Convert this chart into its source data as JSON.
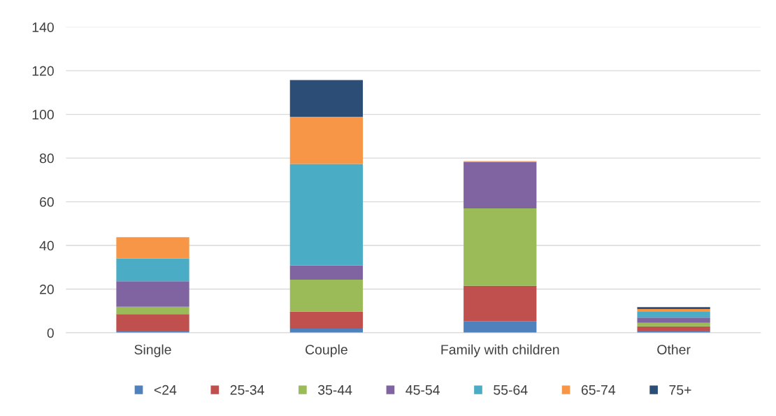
{
  "chart_data": {
    "type": "bar",
    "stacked": true,
    "categories": [
      "Single",
      "Couple",
      "Family with children",
      "Other"
    ],
    "series": [
      {
        "name": "<24",
        "color": "#4f81bd",
        "values": [
          1.0,
          1.9,
          5.4,
          1.0
        ]
      },
      {
        "name": "25-34",
        "color": "#c0504d",
        "values": [
          7.6,
          7.8,
          16.1,
          2.0
        ]
      },
      {
        "name": "35-44",
        "color": "#9bbb59",
        "values": [
          3.3,
          14.6,
          35.5,
          1.6
        ]
      },
      {
        "name": "45-54",
        "color": "#8064a2",
        "values": [
          11.7,
          6.6,
          21.3,
          2.4
        ]
      },
      {
        "name": "55-64",
        "color": "#4bacc6",
        "values": [
          10.5,
          46.4,
          null,
          2.6
        ]
      },
      {
        "name": "65-74",
        "color": "#f79646",
        "values": [
          9.7,
          21.6,
          0.3,
          1.3
        ]
      },
      {
        "name": "75+",
        "color": "#2c4d75",
        "values": [
          null,
          16.8,
          null,
          0.9
        ]
      }
    ],
    "ylim": [
      0,
      140
    ],
    "yticks": [
      0,
      20,
      40,
      60,
      80,
      100,
      120,
      140
    ],
    "grid": "y",
    "legend": "bottom"
  }
}
